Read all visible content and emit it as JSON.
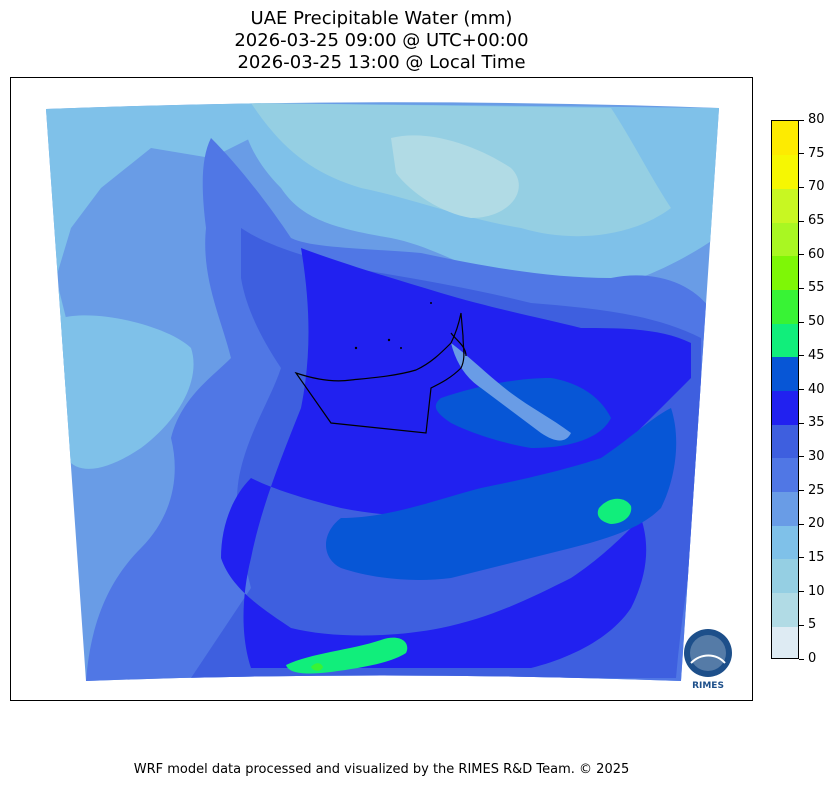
{
  "title": {
    "line1": "UAE Precipitable Water (mm)",
    "line2": "2026-03-25 09:00 @ UTC+00:00",
    "line3": "2026-03-25 13:00 @ Local Time"
  },
  "colorbar": {
    "levels": [
      0,
      5,
      10,
      15,
      20,
      25,
      30,
      35,
      40,
      45,
      50,
      55,
      60,
      65,
      70,
      75,
      80
    ],
    "colors": [
      "#deebf3",
      "#b1dbe5",
      "#95cfe3",
      "#7fc1e9",
      "#699ce6",
      "#5077e5",
      "#3e5fdf",
      "#2121f0",
      "#0756d6",
      "#11ee7b",
      "#38f335",
      "#7ef706",
      "#a9f722",
      "#c8f722",
      "#f6f702",
      "#fdeb01",
      "#fbd100"
    ],
    "tick_labels": [
      "0",
      "5",
      "10",
      "15",
      "20",
      "25",
      "30",
      "35",
      "40",
      "45",
      "50",
      "55",
      "60",
      "65",
      "70",
      "75",
      "80"
    ]
  },
  "logo": {
    "text": "RIMES"
  },
  "footer": "WRF model data processed and visualized by the RIMES R&D Team. © 2025"
}
